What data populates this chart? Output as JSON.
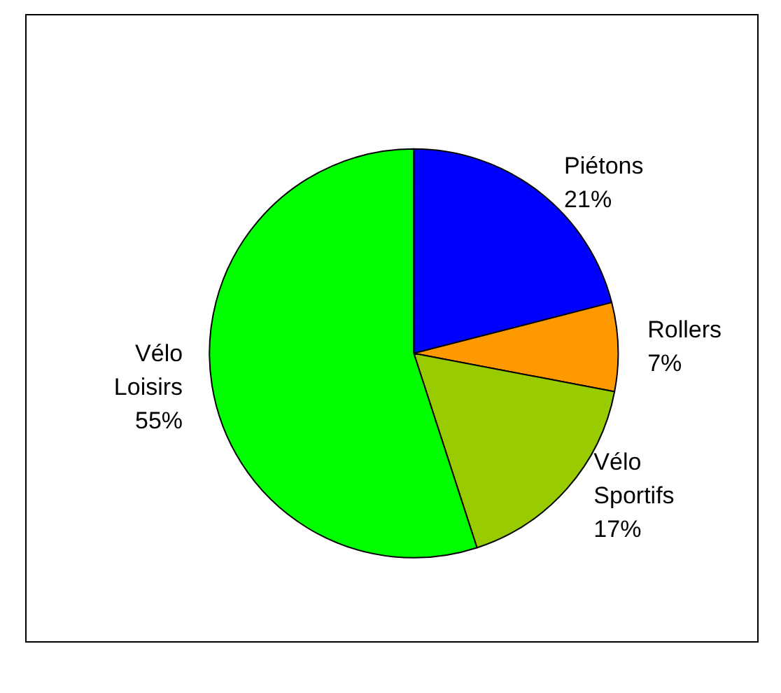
{
  "chart_data": {
    "type": "pie",
    "categories": [
      "Piétons",
      "Rollers",
      "Vélo Sportifs",
      "Vélo Loisirs"
    ],
    "values": [
      21,
      7,
      17,
      55
    ],
    "value_labels": [
      "21%",
      "7%",
      "17%",
      "55%"
    ],
    "colors": [
      "#0000ff",
      "#ff9900",
      "#99cc00",
      "#00ff00"
    ],
    "legend": false
  }
}
